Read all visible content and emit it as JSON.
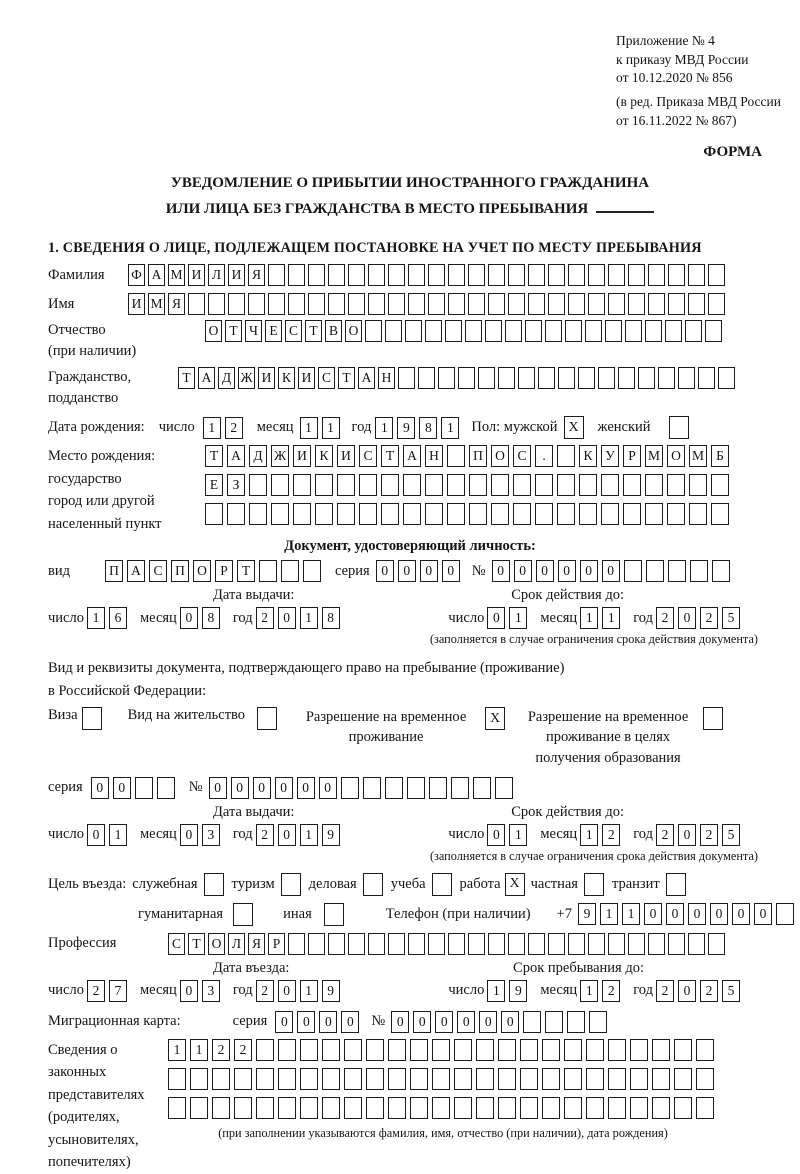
{
  "header": {
    "appendix_line1": "Приложение № 4",
    "appendix_line2": "к приказу МВД России",
    "appendix_line3": "от 10.12.2020 № 856",
    "edition_line1": "(в ред. Приказа МВД России",
    "edition_line2": "от 16.11.2022 № 867)",
    "form_label": "ФОРМА"
  },
  "title": {
    "line1": "УВЕДОМЛЕНИЕ О ПРИБЫТИИ ИНОСТРАННОГО ГРАЖДАНИНА",
    "line2": "ИЛИ ЛИЦА БЕЗ ГРАЖДАНСТВА В МЕСТО ПРЕБЫВАНИЯ"
  },
  "section1": {
    "heading": "1. СВЕДЕНИЯ О ЛИЦЕ, ПОДЛЕЖАЩЕМ ПОСТАНОВКЕ НА УЧЕТ ПО МЕСТУ ПРЕБЫВАНИЯ"
  },
  "date_labels": {
    "day": "число",
    "month": "месяц",
    "year": "год"
  },
  "person": {
    "surname": {
      "label": "Фамилия",
      "boxes": {
        "v": "ФАМИЛИЯ",
        "n": 30
      }
    },
    "given_name": {
      "label": "Имя",
      "boxes": {
        "v": "ИМЯ",
        "n": 30
      }
    },
    "patronymic": {
      "label1": "Отчество",
      "label2": "(при наличии)",
      "boxes": {
        "v": "ОТЧЕСТВО",
        "n": 26
      }
    },
    "citizenship": {
      "label1": "Гражданство,",
      "label2": "подданство",
      "boxes": {
        "v": "ТАДЖИКИСТАН",
        "n": 28
      }
    },
    "birth_date": {
      "label": "Дата рождения:",
      "day": {
        "v": "12",
        "n": 2
      },
      "month": {
        "v": "11",
        "n": 2
      },
      "year": {
        "v": "1981",
        "n": 4
      }
    },
    "sex": {
      "label": "Пол: мужской",
      "male_mark": "X",
      "female_label": "женский",
      "female_mark": ""
    },
    "birth_place": {
      "label1": "Место рождения:",
      "label2": "государство",
      "label3": "город или другой",
      "label4": "населенный пункт",
      "row1": {
        "v": "ТАДЖИКИСТАН ПОС. КУРМОМБ",
        "n": 24
      },
      "row2": {
        "v": "ЕЗ",
        "n": 24
      },
      "row3": {
        "v": "",
        "n": 24
      }
    }
  },
  "identity_doc": {
    "heading": "Документ, удостоверяющий личность:",
    "kind_label": "вид",
    "kind": {
      "v": "ПАСПОРТ",
      "n": 10
    },
    "series_label": "серия",
    "series": {
      "v": "0000",
      "n": 4
    },
    "number_label": "№",
    "number": {
      "v": "000000",
      "n": 11
    },
    "issue_heading": "Дата выдачи:",
    "issue": {
      "day": {
        "v": "16",
        "n": 2
      },
      "month": {
        "v": "08",
        "n": 2
      },
      "year": {
        "v": "2018",
        "n": 4
      }
    },
    "valid_heading": "Срок действия до:",
    "valid": {
      "day": {
        "v": "01",
        "n": 2
      },
      "month": {
        "v": "11",
        "n": 2
      },
      "year": {
        "v": "2025",
        "n": 4
      }
    },
    "note": "(заполняется в случае ограничения срока действия документа)"
  },
  "residence_doc": {
    "intro1": "Вид и реквизиты документа, подтверждающего право на пребывание (проживание)",
    "intro2": "в Российской Федерации:",
    "visa_label": "Виза",
    "visa_mark": "",
    "residence_permit_label": "Вид на жительство",
    "residence_permit_mark": "",
    "temp_permit_label": "Разрешение на временное проживание",
    "temp_permit_mark": "X",
    "edu_permit_label": "Разрешение на временное проживание в целях получения образования",
    "edu_permit_mark": "",
    "series_label": "серия",
    "series": {
      "v": "00",
      "n": 4
    },
    "number_label": "№",
    "number": {
      "v": "000000",
      "n": 14
    },
    "issue_heading": "Дата выдачи:",
    "issue": {
      "day": {
        "v": "01",
        "n": 2
      },
      "month": {
        "v": "03",
        "n": 2
      },
      "year": {
        "v": "2019",
        "n": 4
      }
    },
    "valid_heading": "Срок действия до:",
    "valid": {
      "day": {
        "v": "01",
        "n": 2
      },
      "month": {
        "v": "12",
        "n": 2
      },
      "year": {
        "v": "2025",
        "n": 4
      }
    },
    "note": "(заполняется в случае ограничения срока действия документа)"
  },
  "visit": {
    "purpose_label": "Цель въезда:",
    "labels": {
      "official": "служебная",
      "tourism": "туризм",
      "business": "деловая",
      "study": "учеба",
      "work": "работа",
      "private": "частная",
      "transit": "транзит",
      "humanitarian": "гуманитарная",
      "other": "иная"
    },
    "marks": {
      "official": "",
      "tourism": "",
      "business": "",
      "study": "",
      "work": "X",
      "private": "",
      "transit": "",
      "humanitarian": "",
      "other": ""
    },
    "phone_label": "Телефон (при наличии)",
    "phone_prefix": "+7",
    "phone": {
      "v": "911000000",
      "n": 10
    },
    "profession_label": "Профессия",
    "profession": {
      "v": "СТОЛЯР",
      "n": 28
    },
    "entry_heading": "Дата въезда:",
    "entry": {
      "day": {
        "v": "27",
        "n": 2
      },
      "month": {
        "v": "03",
        "n": 2
      },
      "year": {
        "v": "2019",
        "n": 4
      }
    },
    "stay_heading": "Срок пребывания до:",
    "stay": {
      "day": {
        "v": "19",
        "n": 2
      },
      "month": {
        "v": "12",
        "n": 2
      },
      "year": {
        "v": "2025",
        "n": 4
      }
    }
  },
  "migration_card": {
    "label": "Миграционная карта:",
    "series_label": "серия",
    "series": {
      "v": "0000",
      "n": 4
    },
    "number_label": "№",
    "number": {
      "v": "000000",
      "n": 10
    }
  },
  "representatives": {
    "label1": "Сведения о",
    "label2": "законных",
    "label3": "представителях",
    "label4": "(родителях,",
    "label5": "усыновителях,",
    "label6": "попечителях)",
    "row1": {
      "v": "1122",
      "n": 25
    },
    "row2": {
      "v": "",
      "n": 25
    },
    "row3": {
      "v": "",
      "n": 25
    },
    "footnote": "(при заполнении указываются фамилия, имя, отчество (при наличии), дата рождения)"
  }
}
